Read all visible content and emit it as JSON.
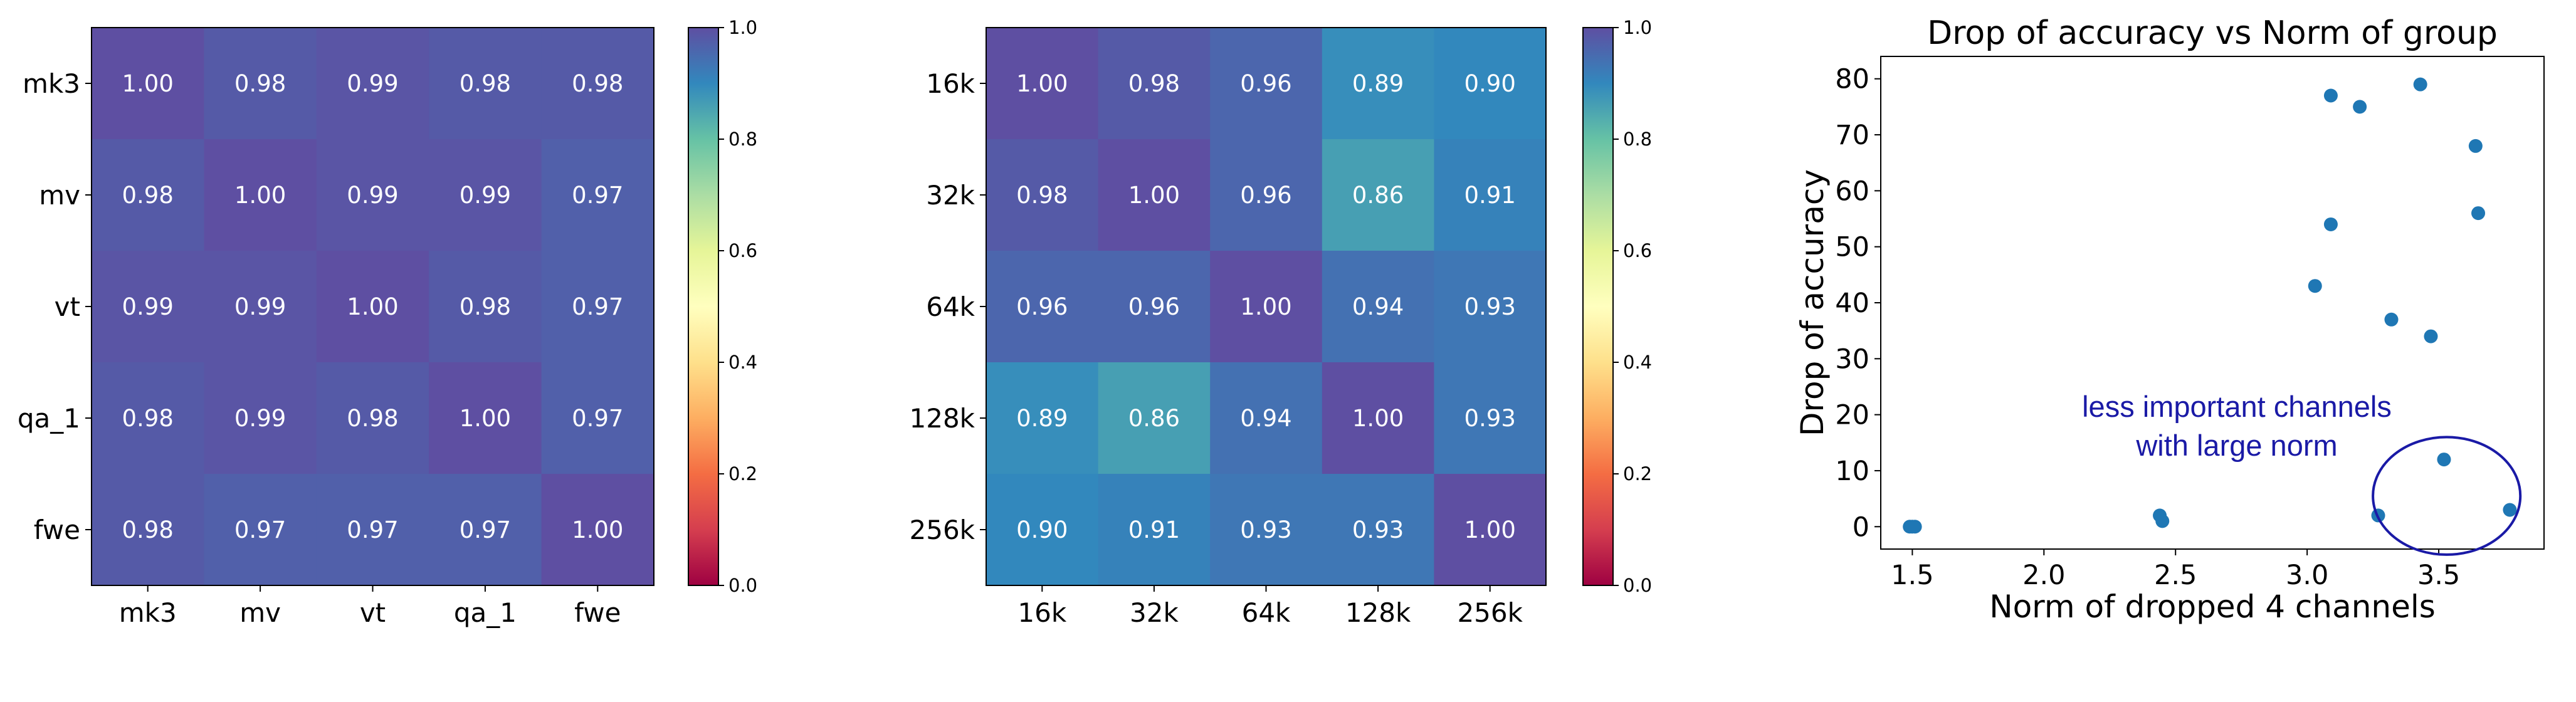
{
  "chart_data": [
    {
      "type": "heatmap",
      "rows": [
        "mk3",
        "mv",
        "vt",
        "qa_1",
        "fwe"
      ],
      "cols": [
        "mk3",
        "mv",
        "vt",
        "qa_1",
        "fwe"
      ],
      "values": [
        [
          1.0,
          0.98,
          0.99,
          0.98,
          0.98
        ],
        [
          0.98,
          1.0,
          0.99,
          0.99,
          0.97
        ],
        [
          0.99,
          0.99,
          1.0,
          0.98,
          0.97
        ],
        [
          0.98,
          0.99,
          0.98,
          1.0,
          0.97
        ],
        [
          0.98,
          0.97,
          0.97,
          0.97,
          1.0
        ]
      ],
      "value_labels": [
        [
          "1.00",
          "0.98",
          "0.99",
          "0.98",
          "0.98"
        ],
        [
          "0.98",
          "1.00",
          "0.99",
          "0.99",
          "0.97"
        ],
        [
          "0.99",
          "0.99",
          "1.00",
          "0.98",
          "0.97"
        ],
        [
          "0.98",
          "0.99",
          "0.98",
          "1.00",
          "0.97"
        ],
        [
          "0.98",
          "0.97",
          "0.97",
          "0.97",
          "1.00"
        ]
      ],
      "colormap": "Spectral",
      "colorbar": {
        "range": [
          0,
          1
        ],
        "ticks": [
          "0.0",
          "0.2",
          "0.4",
          "0.6",
          "0.8",
          "1.0"
        ]
      }
    },
    {
      "type": "heatmap",
      "rows": [
        "16k",
        "32k",
        "64k",
        "128k",
        "256k"
      ],
      "cols": [
        "16k",
        "32k",
        "64k",
        "128k",
        "256k"
      ],
      "values": [
        [
          1.0,
          0.98,
          0.96,
          0.89,
          0.9
        ],
        [
          0.98,
          1.0,
          0.96,
          0.86,
          0.91
        ],
        [
          0.96,
          0.96,
          1.0,
          0.94,
          0.93
        ],
        [
          0.89,
          0.86,
          0.94,
          1.0,
          0.93
        ],
        [
          0.9,
          0.91,
          0.93,
          0.93,
          1.0
        ]
      ],
      "value_labels": [
        [
          "1.00",
          "0.98",
          "0.96",
          "0.89",
          "0.90"
        ],
        [
          "0.98",
          "1.00",
          "0.96",
          "0.86",
          "0.91"
        ],
        [
          "0.96",
          "0.96",
          "1.00",
          "0.94",
          "0.93"
        ],
        [
          "0.89",
          "0.86",
          "0.94",
          "1.00",
          "0.93"
        ],
        [
          "0.90",
          "0.91",
          "0.93",
          "0.93",
          "1.00"
        ]
      ],
      "colormap": "Spectral",
      "colorbar": {
        "range": [
          0,
          1
        ],
        "ticks": [
          "0.0",
          "0.2",
          "0.4",
          "0.6",
          "0.8",
          "1.0"
        ]
      }
    },
    {
      "type": "scatter",
      "title": "Drop of accuracy vs Norm of group",
      "xlabel": "Norm of dropped 4 channels",
      "ylabel": "Drop of accuracy",
      "xlim": [
        1.38,
        3.9
      ],
      "ylim": [
        -4,
        84
      ],
      "xticks": [
        "1.5",
        "2.0",
        "2.5",
        "3.0",
        "3.5"
      ],
      "yticks": [
        "0",
        "10",
        "20",
        "30",
        "40",
        "50",
        "60",
        "70",
        "80"
      ],
      "point_color": "#1f77b4",
      "points": [
        {
          "x": 1.49,
          "y": 0
        },
        {
          "x": 1.5,
          "y": 0
        },
        {
          "x": 1.51,
          "y": 0
        },
        {
          "x": 2.44,
          "y": 2
        },
        {
          "x": 2.45,
          "y": 1
        },
        {
          "x": 3.09,
          "y": 77
        },
        {
          "x": 3.2,
          "y": 75
        },
        {
          "x": 3.43,
          "y": 79
        },
        {
          "x": 3.64,
          "y": 68
        },
        {
          "x": 3.65,
          "y": 56
        },
        {
          "x": 3.09,
          "y": 54
        },
        {
          "x": 3.03,
          "y": 43
        },
        {
          "x": 3.32,
          "y": 37
        },
        {
          "x": 3.47,
          "y": 34
        },
        {
          "x": 3.52,
          "y": 12
        },
        {
          "x": 3.27,
          "y": 2
        },
        {
          "x": 3.77,
          "y": 3
        }
      ],
      "annotation": {
        "lines": [
          "less important channels",
          "with large norm"
        ],
        "color": "#1a1aa6",
        "ellipse_center": {
          "x": 3.53,
          "y": 5.5
        },
        "ellipse_radius": {
          "x": 0.28,
          "y": 10.5
        }
      }
    }
  ]
}
